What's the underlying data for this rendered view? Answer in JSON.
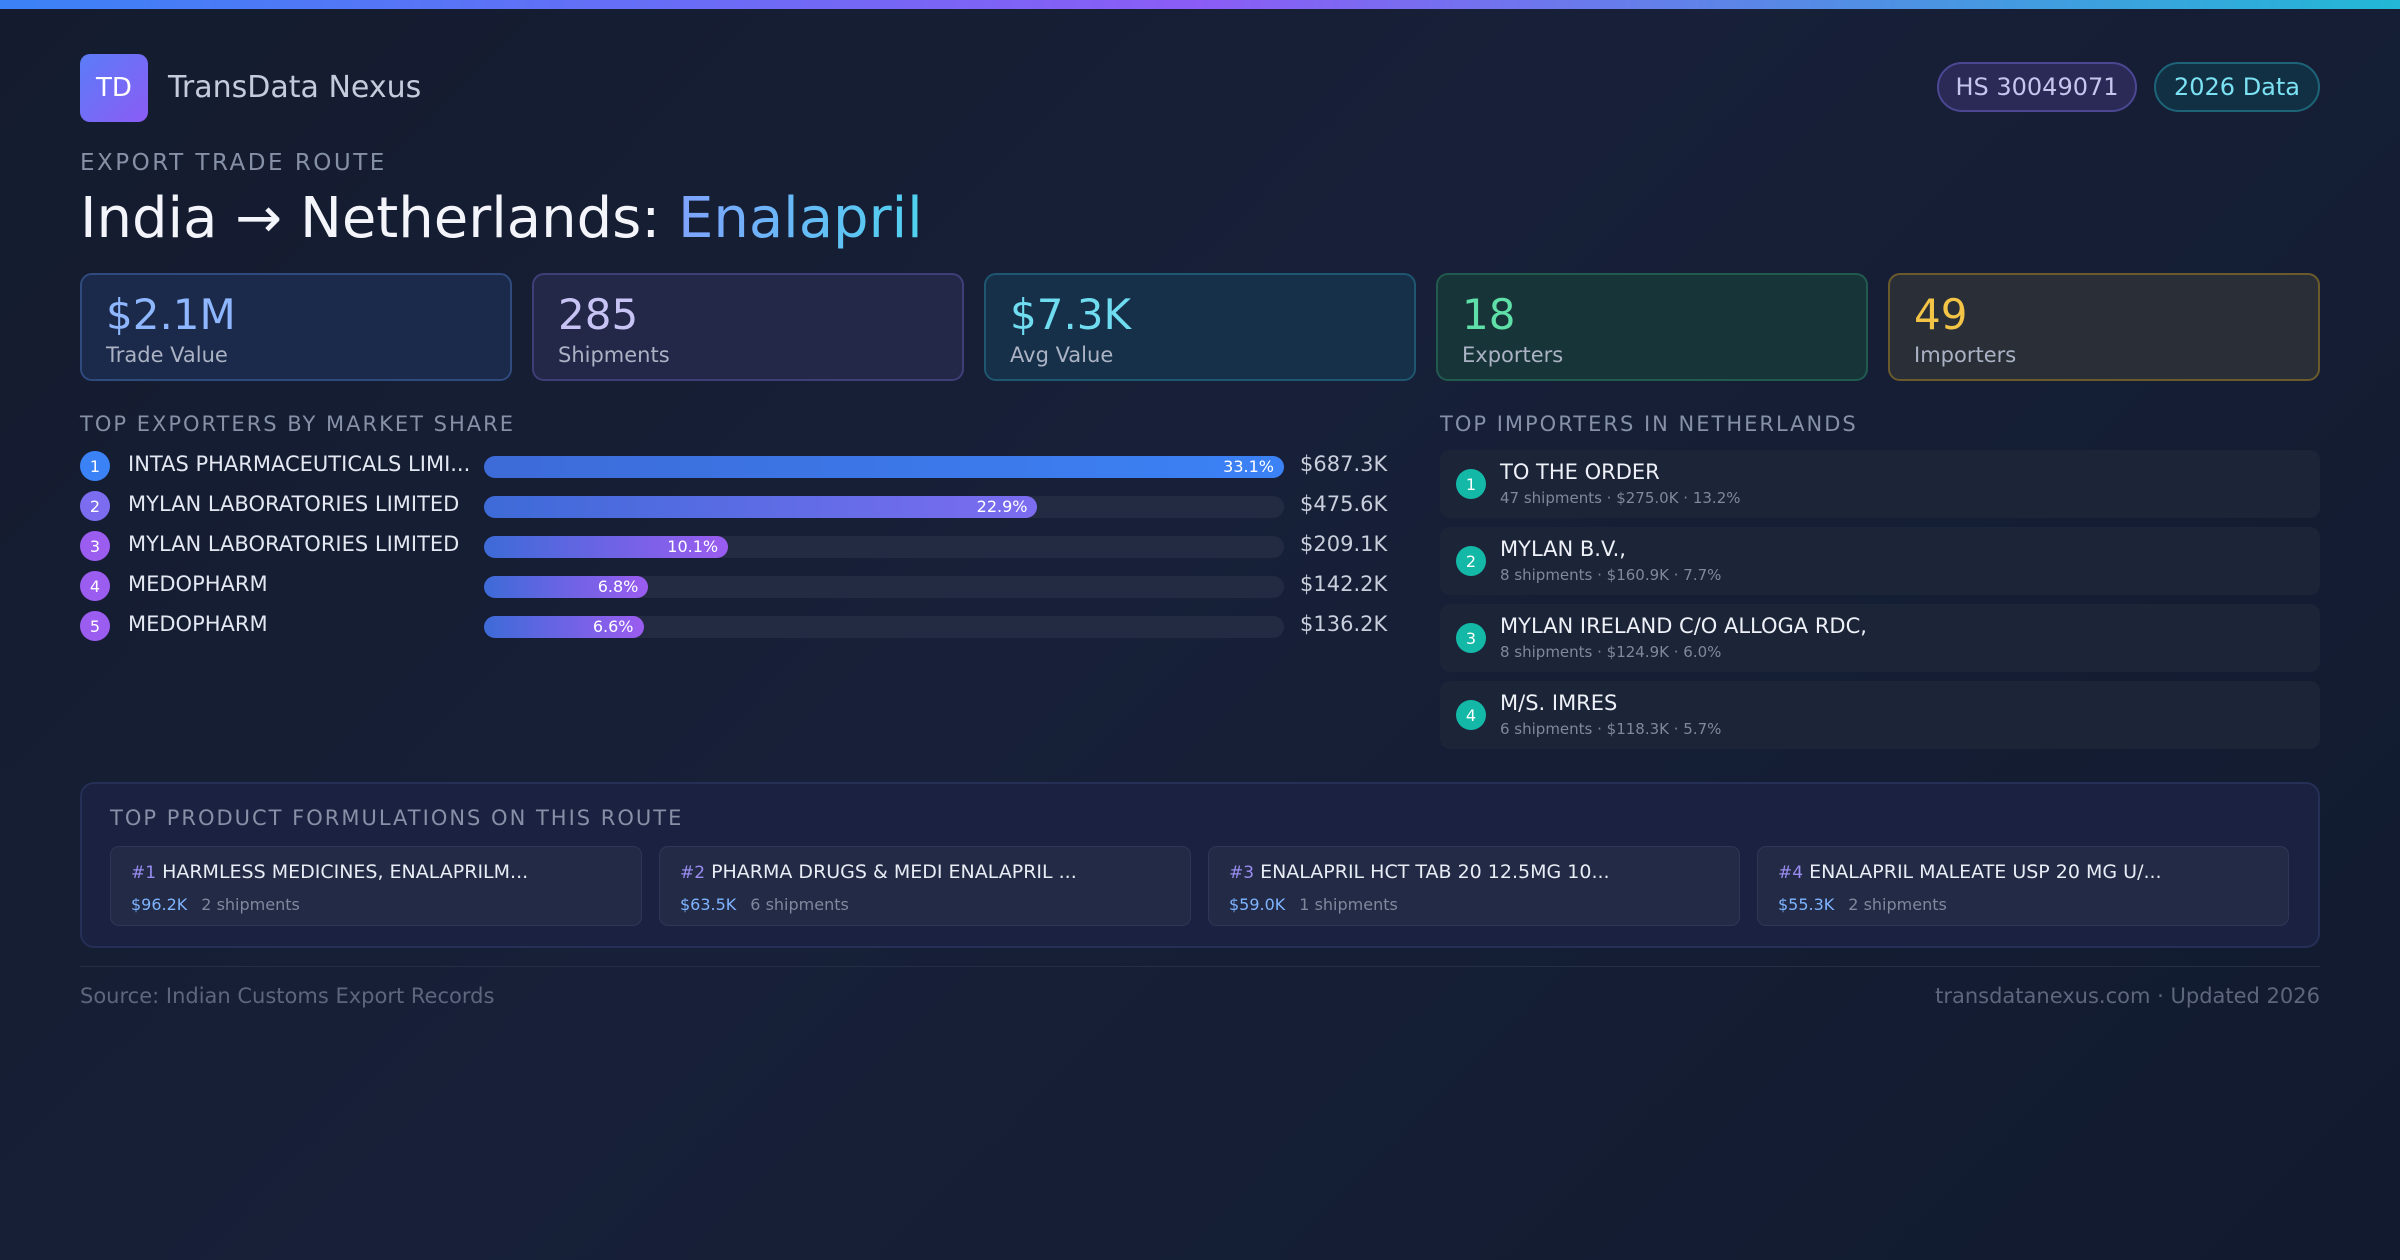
{
  "brand": {
    "logo": "TD",
    "name": "TransData Nexus"
  },
  "badges": {
    "hs_code": "HS 30049071",
    "year": "2026 Data"
  },
  "route": {
    "eyebrow": "EXPORT TRADE ROUTE",
    "title_prefix": "India → Netherlands: ",
    "title_product": "Enalapril"
  },
  "stats": [
    {
      "value": "$2.1M",
      "label": "Trade Value"
    },
    {
      "value": "285",
      "label": "Shipments"
    },
    {
      "value": "$7.3K",
      "label": "Avg Value"
    },
    {
      "value": "18",
      "label": "Exporters"
    },
    {
      "value": "49",
      "label": "Importers"
    }
  ],
  "exporters": {
    "heading": "TOP EXPORTERS BY MARKET SHARE",
    "items": [
      {
        "rank": "1",
        "name": "INTAS PHARMACEUTICALS LIMI...",
        "share": 33.1,
        "share_label": "33.1%",
        "value": "$687.3K",
        "color": "#3b82f6"
      },
      {
        "rank": "2",
        "name": "MYLAN LABORATORIES LIMITED",
        "share": 22.9,
        "share_label": "22.9%",
        "value": "$475.6K",
        "color": "#7c6cf0"
      },
      {
        "rank": "3",
        "name": "MYLAN LABORATORIES LIMITED",
        "share": 10.1,
        "share_label": "10.1%",
        "value": "$209.1K",
        "color": "#9b5cf0"
      },
      {
        "rank": "4",
        "name": "MEDOPHARM",
        "share": 6.8,
        "share_label": "6.8%",
        "value": "$142.2K",
        "color": "#9b5cf0"
      },
      {
        "rank": "5",
        "name": "MEDOPHARM",
        "share": 6.6,
        "share_label": "6.6%",
        "value": "$136.2K",
        "color": "#9b5cf0"
      }
    ]
  },
  "importers": {
    "heading": "TOP IMPORTERS IN NETHERLANDS",
    "items": [
      {
        "rank": "1",
        "name": "TO THE ORDER",
        "detail": "47 shipments · $275.0K · 13.2%"
      },
      {
        "rank": "2",
        "name": "MYLAN B.V.,",
        "detail": "8 shipments · $160.9K · 7.7%"
      },
      {
        "rank": "3",
        "name": "MYLAN IRELAND C/O ALLOGA RDC,",
        "detail": "8 shipments · $124.9K · 6.0%"
      },
      {
        "rank": "4",
        "name": "M/S. IMRES",
        "detail": "6 shipments · $118.3K · 5.7%"
      }
    ]
  },
  "formulations": {
    "heading": "TOP PRODUCT FORMULATIONS ON THIS ROUTE",
    "items": [
      {
        "rank": "#1",
        "name": "HARMLESS MEDICINES, ENALAPRILM...",
        "value": "$96.2K",
        "shipments": "2 shipments"
      },
      {
        "rank": "#2",
        "name": "PHARMA DRUGS & MEDI ENALAPRIL ...",
        "value": "$63.5K",
        "shipments": "6 shipments"
      },
      {
        "rank": "#3",
        "name": "ENALAPRIL HCT TAB 20 12.5MG 10...",
        "value": "$59.0K",
        "shipments": "1 shipments"
      },
      {
        "rank": "#4",
        "name": "ENALAPRIL MALEATE USP 20 MG U/...",
        "value": "$55.3K",
        "shipments": "2 shipments"
      }
    ]
  },
  "footer": {
    "source": "Source: Indian Customs Export Records",
    "site": "transdatanexus.com · Updated 2026"
  }
}
